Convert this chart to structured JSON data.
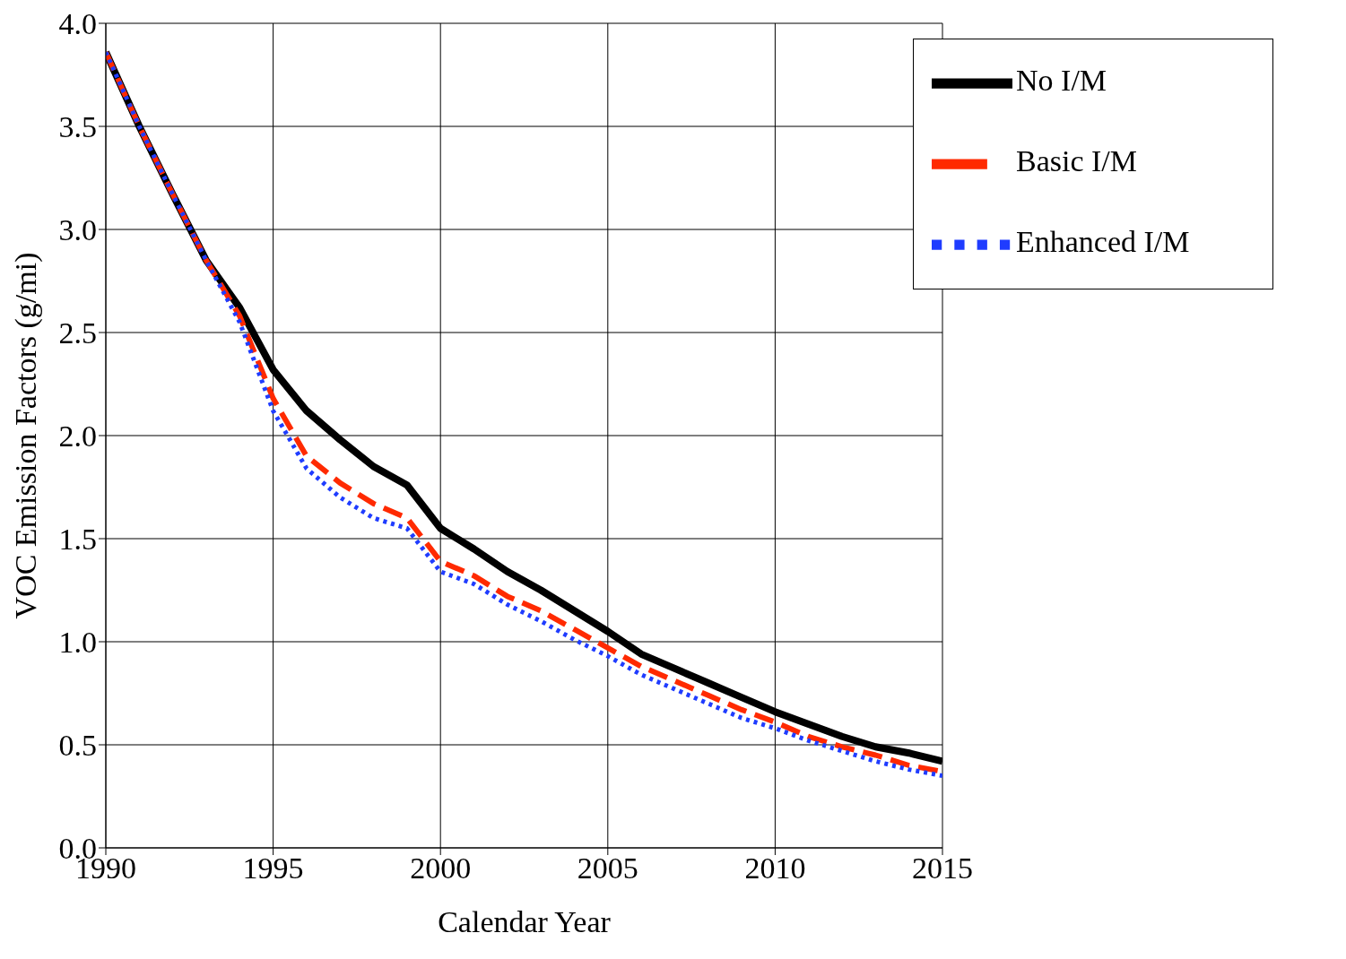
{
  "chart_data": {
    "type": "line",
    "xlabel": "Calendar Year",
    "ylabel": "VOC Emission Factors (g/mi)",
    "x": [
      1990,
      1991,
      1992,
      1993,
      1994,
      1995,
      1996,
      1997,
      1998,
      1999,
      2000,
      2001,
      2002,
      2003,
      2004,
      2005,
      2006,
      2007,
      2008,
      2009,
      2010,
      2011,
      2012,
      2013,
      2014,
      2015
    ],
    "series": [
      {
        "name": "No I/M",
        "color": "#000000",
        "line_style": "solid",
        "values": [
          3.86,
          3.5,
          3.17,
          2.85,
          2.62,
          2.32,
          2.12,
          1.98,
          1.85,
          1.76,
          1.55,
          1.45,
          1.34,
          1.25,
          1.15,
          1.05,
          0.94,
          0.87,
          0.8,
          0.73,
          0.66,
          0.6,
          0.54,
          0.49,
          0.46,
          0.42
        ]
      },
      {
        "name": "Basic I/M",
        "color": "#ff2a00",
        "line_style": "dashed",
        "values": [
          3.86,
          3.5,
          3.17,
          2.85,
          2.58,
          2.18,
          1.9,
          1.77,
          1.67,
          1.6,
          1.39,
          1.32,
          1.22,
          1.15,
          1.06,
          0.97,
          0.88,
          0.81,
          0.74,
          0.67,
          0.61,
          0.54,
          0.49,
          0.45,
          0.4,
          0.37
        ]
      },
      {
        "name": "Enhanced I/M",
        "color": "#1f3cff",
        "line_style": "dotted",
        "values": [
          3.86,
          3.5,
          3.17,
          2.85,
          2.55,
          2.12,
          1.84,
          1.7,
          1.6,
          1.55,
          1.34,
          1.28,
          1.18,
          1.1,
          1.01,
          0.93,
          0.84,
          0.77,
          0.7,
          0.63,
          0.58,
          0.52,
          0.47,
          0.42,
          0.38,
          0.35
        ]
      }
    ],
    "xlim": [
      1990,
      2015
    ],
    "xticks": [
      1990,
      1995,
      2000,
      2005,
      2010,
      2015
    ],
    "ylim": [
      0,
      4
    ],
    "yticks": [
      {
        "value": 0,
        "label": "0.0"
      },
      {
        "value": 0.5,
        "label": "0.5"
      },
      {
        "value": 1,
        "label": "1.0"
      },
      {
        "value": 1.5,
        "label": "1.5"
      },
      {
        "value": 2,
        "label": "2.0"
      },
      {
        "value": 2.5,
        "label": "2.5"
      },
      {
        "value": 3,
        "label": "3.0"
      },
      {
        "value": 3.5,
        "label": "3.5"
      },
      {
        "value": 4,
        "label": "4.0"
      }
    ],
    "grid": true,
    "legend": "top right",
    "marker": "none"
  }
}
